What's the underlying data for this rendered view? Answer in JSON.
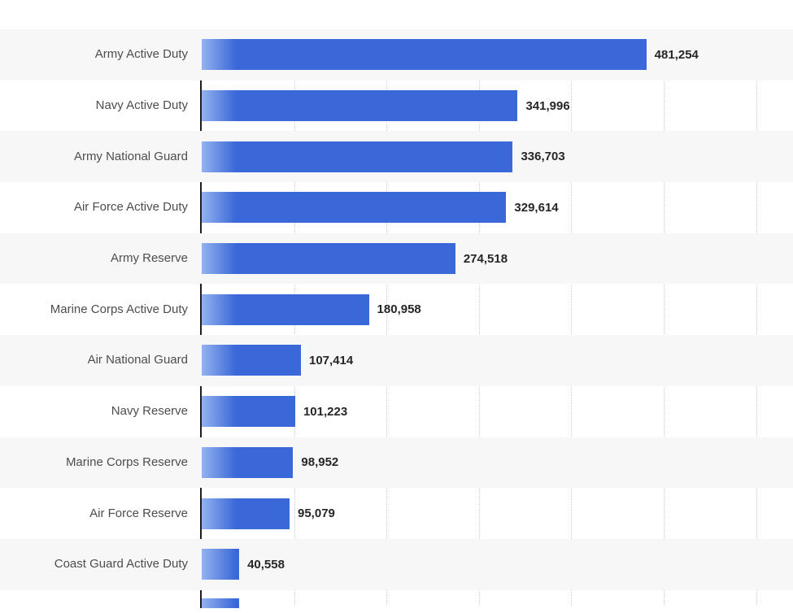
{
  "chart_data": {
    "type": "bar",
    "orientation": "horizontal",
    "title": "",
    "xlabel": "",
    "ylabel": "",
    "categories": [
      "Army Active Duty",
      "Navy Active Duty",
      "Army National Guard",
      "Air Force Active Duty",
      "Army Reserve",
      "Marine Corps Active Duty",
      "Air National Guard",
      "Navy Reserve",
      "Marine Corps Reserve",
      "Air Force Reserve",
      "Coast Guard Active Duty"
    ],
    "values": [
      481254,
      341996,
      336703,
      329614,
      274518,
      180958,
      107414,
      101223,
      98952,
      95079,
      40558
    ],
    "value_labels": [
      "481,254",
      "341,996",
      "336,703",
      "329,614",
      "274,518",
      "180,958",
      "107,414",
      "101,223",
      "98,952",
      "95,079",
      "40,558"
    ],
    "xlim": [
      0,
      640000
    ],
    "gridline_interval": 100000,
    "grid": "vertical-dotted",
    "legend_position": "none",
    "bar_color": "#3a68d8",
    "bar_color_light": "#93b2ee",
    "stripe_color": "#f7f7f8",
    "axis_color": "#1f1f1f",
    "label_color": "#4d4d4d",
    "value_color": "#262626"
  }
}
